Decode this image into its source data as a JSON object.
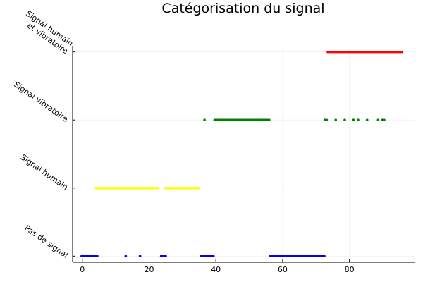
{
  "chart_data": {
    "type": "scatter",
    "title": "Catégorisation du signal",
    "xlabel": "",
    "ylabel": "",
    "xlim": [
      -2.9,
      99.5
    ],
    "ylim": [
      -0.09,
      3.09
    ],
    "grid": true,
    "legend": "none",
    "x_ticks": [
      {
        "value": 0,
        "label": "0"
      },
      {
        "value": 20,
        "label": "20"
      },
      {
        "value": 40,
        "label": "40"
      },
      {
        "value": 60,
        "label": "60"
      },
      {
        "value": 80,
        "label": "80"
      }
    ],
    "y_categories": [
      {
        "value": 0,
        "lines": [
          "Pas de signal"
        ]
      },
      {
        "value": 1,
        "lines": [
          "Signal humain"
        ]
      },
      {
        "value": 2,
        "lines": [
          "Signal vibratoire"
        ]
      },
      {
        "value": 3,
        "lines": [
          "Signal humain",
          "et vibratoire"
        ]
      }
    ],
    "series": [
      {
        "color": "#0000ff",
        "y": 0,
        "segments": [
          [
            -0.2,
            4.5
          ],
          [
            23.6,
            25.0
          ],
          [
            35.5,
            39.3
          ],
          [
            56.2,
            72.5
          ]
        ],
        "points": [
          13.0,
          17.3
        ]
      },
      {
        "color": "#ffff00",
        "y": 1,
        "segments": [
          [
            4.0,
            22.8
          ],
          [
            24.8,
            34.8
          ]
        ],
        "points": []
      },
      {
        "color": "#008000",
        "y": 2,
        "segments": [
          [
            39.6,
            56.0
          ],
          [
            72.6,
            73.2
          ]
        ],
        "points": [
          36.6,
          75.9,
          78.6,
          81.2,
          82.6,
          85.3,
          88.6,
          89.9,
          90.4
        ]
      },
      {
        "color": "#ff0000",
        "y": 3,
        "segments": [
          [
            73.5,
            95.8
          ]
        ],
        "points": []
      }
    ]
  }
}
